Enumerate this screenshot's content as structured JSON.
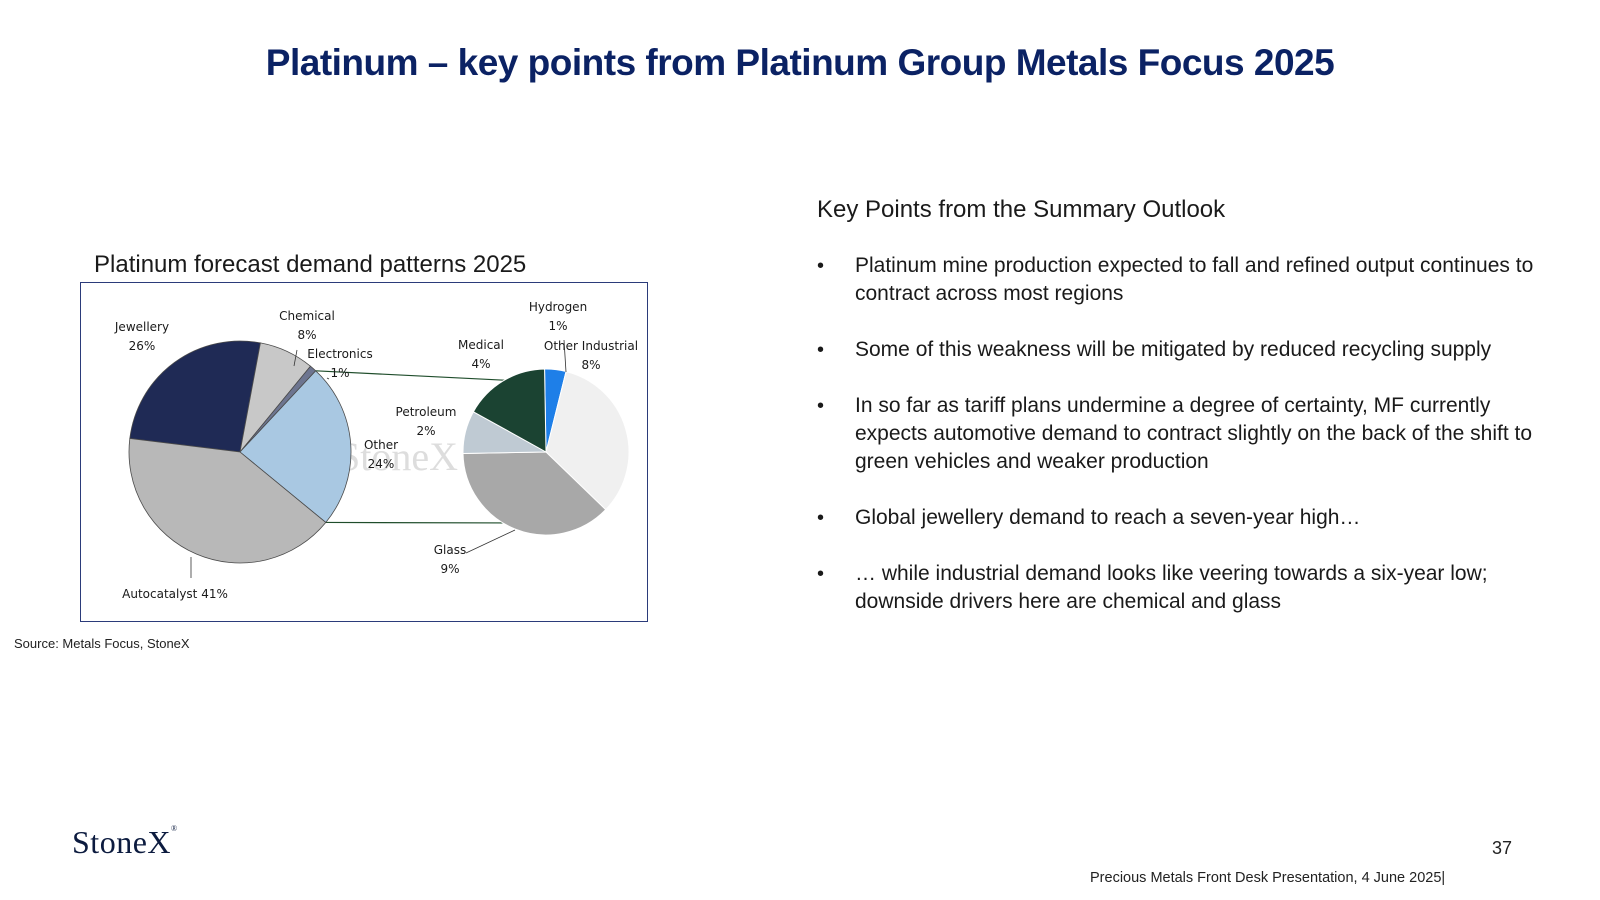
{
  "title": "Platinum – key points from Platinum Group Metals Focus 2025",
  "source": "Source: Metals Focus, StoneX",
  "key_points": {
    "heading": "Key Points from the Summary Outlook",
    "bullet_symbol": "•",
    "items": [
      "Platinum mine production expected to fall and refined output continues to contract across most regions",
      "Some of this weakness will be mitigated by reduced recycling supply",
      "In so far as tariff plans undermine a degree of certainty, MF currently expects automotive demand to contract slightly on the back of the shift to green vehicles and weaker production",
      "Global jewellery demand to reach a seven-year high…",
      "… while industrial demand looks like veering towards a six-year low; downside drivers here are chemical and glass"
    ]
  },
  "footer": {
    "logo": "StoneX",
    "page_number": "37",
    "presentation": "Precious Metals Front Desk Presentation, 4 June 2025|"
  },
  "chart_data": {
    "type": "pie",
    "title": "Platinum forecast demand patterns 2025",
    "watermark": "StoneX",
    "main_pie": {
      "slices": [
        {
          "name": "Jewellery",
          "label": "Jewellery",
          "pct_label": "26%",
          "value": 26,
          "color": "#1f2a55"
        },
        {
          "name": "Chemical",
          "label": "Chemical",
          "pct_label": "8%",
          "value": 8,
          "color": "#c8c8c8"
        },
        {
          "name": "Electronics",
          "label": "Electronics",
          "pct_label": "1%",
          "value": 1,
          "color": "#6d7590"
        },
        {
          "name": "Other",
          "label": "Other",
          "pct_label": "24%",
          "value": 24,
          "color": "#a9c8e2"
        },
        {
          "name": "Autocatalyst",
          "label": "Autocatalyst 41%",
          "pct_label": "",
          "value": 41,
          "color": "#b8b8b8"
        }
      ]
    },
    "breakout_pie": {
      "slices": [
        {
          "name": "Hydrogen",
          "label": "Hydrogen",
          "pct_label": "1%",
          "value": 1,
          "color": "#1e7fe8"
        },
        {
          "name": "Other Industrial",
          "label": "Other Industrial",
          "pct_label": "8%",
          "value": 8,
          "color": "#f0f0f0"
        },
        {
          "name": "Glass",
          "label": "Glass",
          "pct_label": "9%",
          "value": 9,
          "color": "#a8a8a8"
        },
        {
          "name": "Petroleum",
          "label": "Petroleum",
          "pct_label": "2%",
          "value": 2,
          "color": "#bfcad3"
        },
        {
          "name": "Medical",
          "label": "Medical",
          "pct_label": "4%",
          "value": 4,
          "color": "#1b4332"
        }
      ]
    }
  }
}
